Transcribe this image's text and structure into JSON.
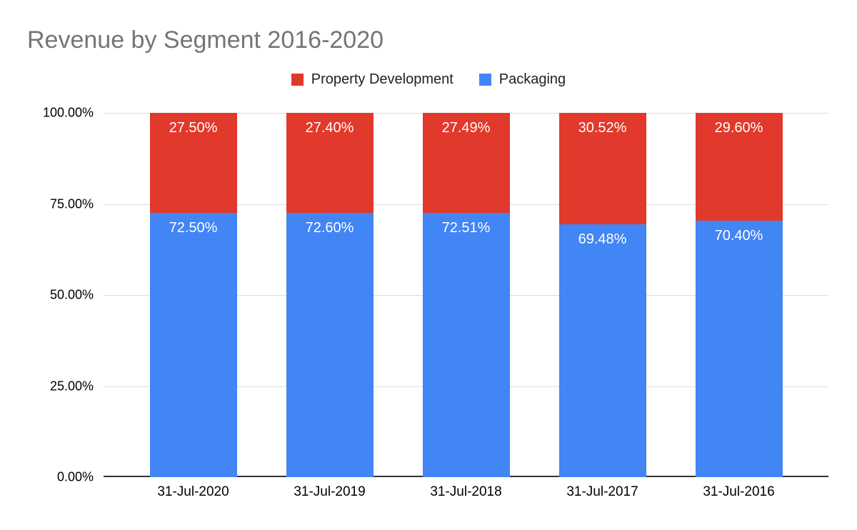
{
  "chart_data": {
    "type": "bar",
    "stacked": "percent",
    "title": "Revenue by Segment 2016-2020",
    "categories": [
      "31-Jul-2020",
      "31-Jul-2019",
      "31-Jul-2018",
      "31-Jul-2017",
      "31-Jul-2016"
    ],
    "series": [
      {
        "name": "Property Development",
        "color": "#e1392b",
        "values": [
          27.5,
          27.4,
          27.49,
          30.52,
          29.6
        ],
        "labels": [
          "27.50%",
          "27.40%",
          "27.49%",
          "30.52%",
          "29.60%"
        ]
      },
      {
        "name": "Packaging",
        "color": "#4285f4",
        "values": [
          72.5,
          72.6,
          72.51,
          69.48,
          70.4
        ],
        "labels": [
          "72.50%",
          "72.60%",
          "72.51%",
          "69.48%",
          "70.40%"
        ]
      }
    ],
    "series_order": "top-to-bottom",
    "y_axis": {
      "ticks": [
        {
          "label": "100.00%",
          "value": 100
        },
        {
          "label": "75.00%",
          "value": 75
        },
        {
          "label": "50.00%",
          "value": 50
        },
        {
          "label": "25.00%",
          "value": 25
        },
        {
          "label": "0.00%",
          "value": 0
        }
      ],
      "ylim": [
        0,
        100
      ]
    },
    "legend_position": "top",
    "grid": true,
    "colors": {
      "title_text": "#757575",
      "axis_label_text": "#000000",
      "data_label_text": "#ffffff",
      "gridline": "#dcdcdc",
      "axis_line": "#333333",
      "background": "#ffffff"
    }
  }
}
